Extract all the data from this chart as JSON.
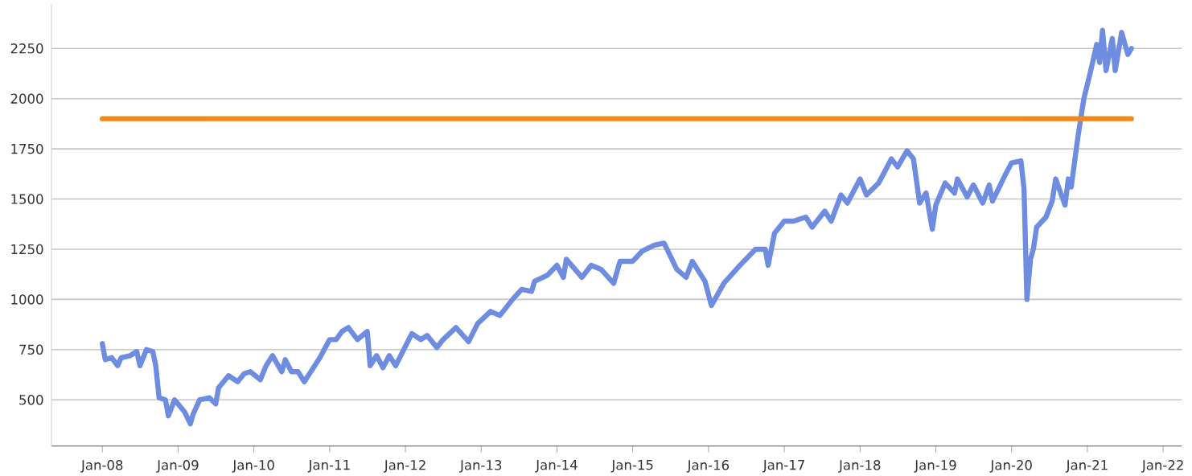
{
  "chart_data": {
    "type": "line",
    "xlim": [
      "2007-05-01",
      "2022-04-01"
    ],
    "ylim": [
      270,
      2470
    ],
    "xticks": [
      {
        "value": "2008-01-01",
        "label": "Jan-08"
      },
      {
        "value": "2009-01-01",
        "label": "Jan-09"
      },
      {
        "value": "2010-01-01",
        "label": "Jan-10"
      },
      {
        "value": "2011-01-01",
        "label": "Jan-11"
      },
      {
        "value": "2012-01-01",
        "label": "Jan-12"
      },
      {
        "value": "2013-01-01",
        "label": "Jan-13"
      },
      {
        "value": "2014-01-01",
        "label": "Jan-14"
      },
      {
        "value": "2015-01-01",
        "label": "Jan-15"
      },
      {
        "value": "2016-01-01",
        "label": "Jan-16"
      },
      {
        "value": "2017-01-01",
        "label": "Jan-17"
      },
      {
        "value": "2018-01-01",
        "label": "Jan-18"
      },
      {
        "value": "2019-01-01",
        "label": "Jan-19"
      },
      {
        "value": "2020-01-01",
        "label": "Jan-20"
      },
      {
        "value": "2021-01-01",
        "label": "Jan-21"
      },
      {
        "value": "2022-01-01",
        "label": "Jan-22"
      }
    ],
    "yticks": [
      500,
      750,
      1000,
      1250,
      1500,
      1750,
      2000,
      2250
    ],
    "grid": "y",
    "series": [
      {
        "color": "#6f8de0",
        "x": [
          "2008-01-01",
          "2008-01-15",
          "2008-02-15",
          "2008-03-15",
          "2008-04-01",
          "2008-05-15",
          "2008-06-15",
          "2008-07-01",
          "2008-08-01",
          "2008-09-01",
          "2008-09-15",
          "2008-10-01",
          "2008-11-01",
          "2008-11-15",
          "2008-12-15",
          "2009-02-01",
          "2009-03-01",
          "2009-03-15",
          "2009-04-15",
          "2009-06-01",
          "2009-07-01",
          "2009-07-15",
          "2009-09-01",
          "2009-10-15",
          "2009-11-15",
          "2009-12-15",
          "2010-02-01",
          "2010-03-01",
          "2010-04-01",
          "2010-05-15",
          "2010-06-01",
          "2010-07-01",
          "2010-08-01",
          "2010-09-01",
          "2010-10-15",
          "2010-11-15",
          "2011-01-01",
          "2011-02-01",
          "2011-03-01",
          "2011-04-01",
          "2011-05-15",
          "2011-07-01",
          "2011-07-15",
          "2011-08-15",
          "2011-09-15",
          "2011-10-15",
          "2011-11-15",
          "2012-02-01",
          "2012-03-15",
          "2012-04-15",
          "2012-06-01",
          "2012-07-01",
          "2012-09-01",
          "2012-11-01",
          "2012-12-15",
          "2013-02-15",
          "2013-04-01",
          "2013-06-01",
          "2013-07-15",
          "2013-09-01",
          "2013-09-15",
          "2013-11-15",
          "2014-01-01",
          "2014-02-01",
          "2014-02-15",
          "2014-05-01",
          "2014-06-15",
          "2014-08-01",
          "2014-10-01",
          "2014-11-01",
          "2015-01-01",
          "2015-02-15",
          "2015-04-15",
          "2015-06-01",
          "2015-08-01",
          "2015-09-15",
          "2015-10-15",
          "2015-12-15",
          "2016-01-15",
          "2016-03-15",
          "2016-06-01",
          "2016-08-15",
          "2016-10-01",
          "2016-10-15",
          "2016-11-15",
          "2017-01-01",
          "2017-02-15",
          "2017-04-15",
          "2017-05-15",
          "2017-07-15",
          "2017-08-15",
          "2017-10-01",
          "2017-11-01",
          "2018-01-01",
          "2018-02-01",
          "2018-04-01",
          "2018-06-01",
          "2018-07-01",
          "2018-08-15",
          "2018-09-15",
          "2018-10-15",
          "2018-11-15",
          "2018-12-15",
          "2019-01-01",
          "2019-02-15",
          "2019-04-01",
          "2019-04-15",
          "2019-06-01",
          "2019-07-01",
          "2019-08-15",
          "2019-09-15",
          "2019-10-01",
          "2019-12-01",
          "2020-01-01",
          "2020-02-15",
          "2020-03-01",
          "2020-03-15",
          "2020-04-01",
          "2020-04-15",
          "2020-05-01",
          "2020-06-15",
          "2020-07-15",
          "2020-08-01",
          "2020-09-15",
          "2020-10-01",
          "2020-10-15",
          "2020-11-15",
          "2020-12-15",
          "2021-01-15",
          "2021-02-15",
          "2021-03-01",
          "2021-03-15",
          "2021-04-01",
          "2021-05-01",
          "2021-05-15",
          "2021-06-15",
          "2021-07-15",
          "2021-08-01"
        ],
        "values": [
          780,
          700,
          710,
          670,
          710,
          720,
          740,
          670,
          750,
          740,
          670,
          510,
          500,
          420,
          500,
          440,
          380,
          430,
          500,
          510,
          480,
          560,
          620,
          590,
          630,
          640,
          600,
          670,
          720,
          640,
          700,
          640,
          640,
          590,
          660,
          710,
          800,
          800,
          840,
          860,
          800,
          840,
          670,
          720,
          660,
          720,
          670,
          830,
          800,
          820,
          760,
          800,
          860,
          790,
          880,
          940,
          920,
          1000,
          1050,
          1040,
          1090,
          1120,
          1170,
          1110,
          1200,
          1110,
          1170,
          1150,
          1080,
          1190,
          1190,
          1240,
          1270,
          1280,
          1150,
          1110,
          1190,
          1090,
          970,
          1080,
          1170,
          1250,
          1250,
          1170,
          1330,
          1390,
          1390,
          1410,
          1360,
          1440,
          1390,
          1520,
          1480,
          1600,
          1520,
          1580,
          1700,
          1660,
          1740,
          1700,
          1480,
          1530,
          1350,
          1470,
          1580,
          1530,
          1600,
          1510,
          1570,
          1480,
          1570,
          1490,
          1620,
          1680,
          1690,
          1550,
          1000,
          1200,
          1250,
          1360,
          1410,
          1490,
          1600,
          1470,
          1600,
          1560,
          1800,
          2000,
          2130,
          2270,
          2180,
          2340,
          2140,
          2300,
          2140,
          2330,
          2220,
          2250
        ]
      },
      {
        "color": "#f08a1c",
        "x": [
          "2008-01-01",
          "2021-08-01"
        ],
        "values": [
          1900,
          1900
        ]
      }
    ]
  }
}
